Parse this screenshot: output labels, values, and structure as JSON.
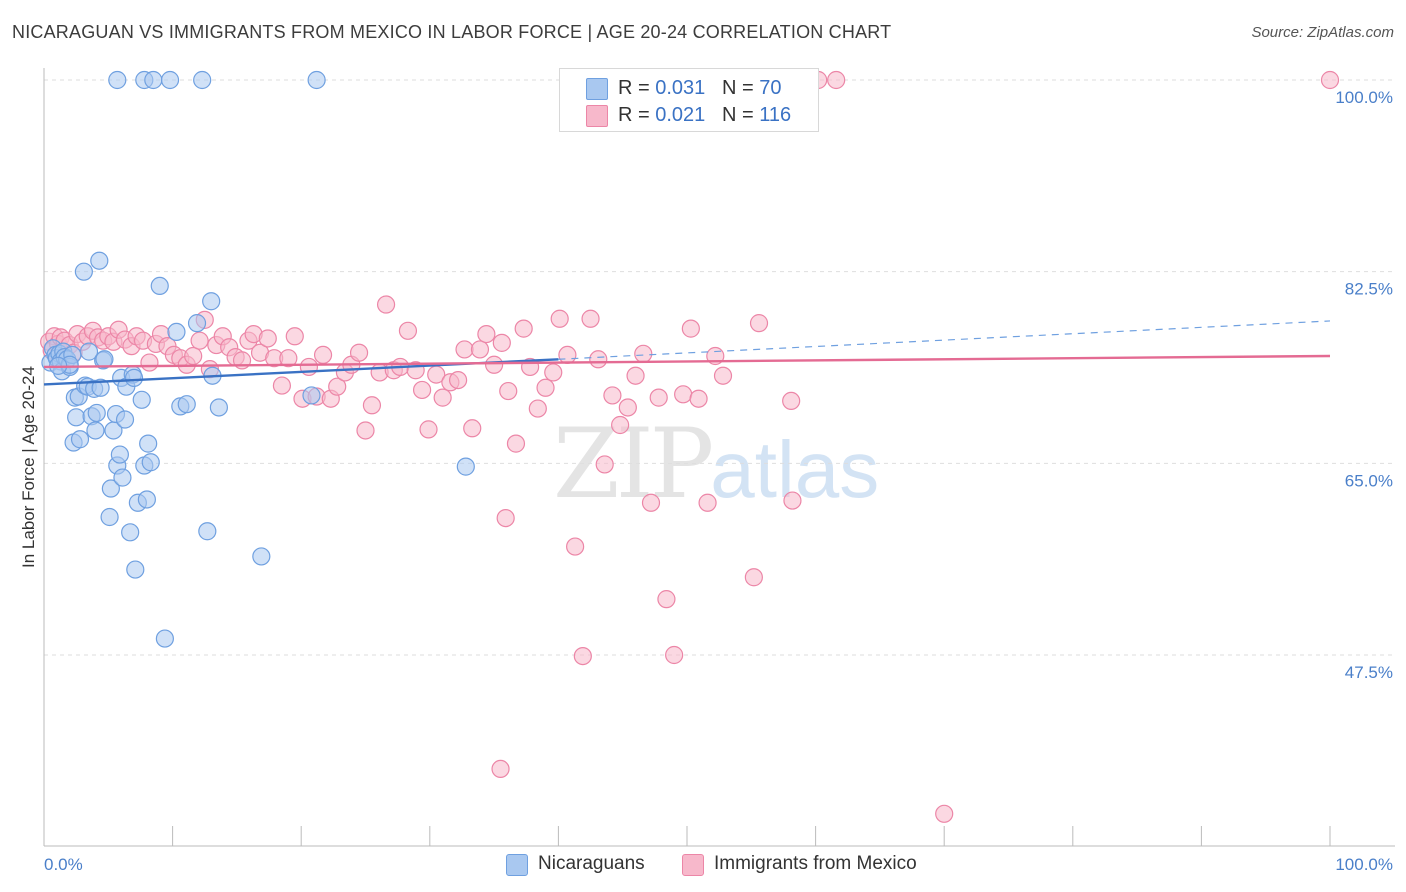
{
  "title": "NICARAGUAN VS IMMIGRANTS FROM MEXICO IN LABOR FORCE | AGE 20-24 CORRELATION CHART",
  "source": "Source: ZipAtlas.com",
  "watermark": {
    "part1": "ZIP",
    "part2": "atlas"
  },
  "legend": {
    "rows": [
      {
        "r_label": "R = ",
        "r_value": "0.031",
        "n_label": "N = ",
        "n_value": "70",
        "color": "#a9c8f0"
      },
      {
        "r_label": "R = ",
        "r_value": "0.021",
        "n_label": "N = ",
        "n_value": "116",
        "color": "#f7b8cb"
      }
    ]
  },
  "bottom_legend": {
    "items": [
      {
        "label": "Nicaraguans",
        "color": "#a9c8f0"
      },
      {
        "label": "Immigrants from Mexico",
        "color": "#f7b8cb"
      }
    ]
  },
  "chart_data": {
    "type": "scatter",
    "xlabel": "",
    "ylabel": "In Labor Force | Age 20-24",
    "xlim": [
      0,
      100
    ],
    "ylim": [
      30,
      100
    ],
    "x_tick_labels": [
      "0.0%",
      "100.0%"
    ],
    "y_ticks": [
      47.5,
      65.0,
      82.5,
      100.0
    ],
    "y_tick_labels": [
      "47.5%",
      "65.0%",
      "82.5%",
      "100.0%"
    ],
    "grid": "horizontal dashed",
    "legend_position": "top-center",
    "series": [
      {
        "name": "Nicaraguans",
        "color": "#6fa0e0",
        "fill": "#a9c8f0",
        "trend": {
          "x": [
            0,
            40
          ],
          "y": [
            72.2,
            74.5
          ],
          "dashed_extension": {
            "x": [
              40,
              100
            ],
            "y": [
              74.5,
              78.0
            ]
          }
        },
        "points": [
          [
            0.5,
            74.2
          ],
          [
            0.7,
            75.5
          ],
          [
            0.9,
            74.9
          ],
          [
            1.0,
            74.6
          ],
          [
            1.2,
            75.0
          ],
          [
            1.3,
            74.3
          ],
          [
            1.4,
            73.4
          ],
          [
            1.5,
            75.2
          ],
          [
            1.6,
            74.7
          ],
          [
            1.8,
            74.5
          ],
          [
            2.0,
            73.8
          ],
          [
            2.2,
            74.9
          ],
          [
            2.4,
            71.0
          ],
          [
            2.3,
            66.9
          ],
          [
            2.5,
            69.2
          ],
          [
            2.7,
            71.1
          ],
          [
            2.8,
            67.2
          ],
          [
            3.1,
            82.5
          ],
          [
            3.2,
            72.1
          ],
          [
            3.4,
            72.0
          ],
          [
            3.5,
            75.2
          ],
          [
            3.7,
            69.3
          ],
          [
            3.9,
            71.8
          ],
          [
            4.0,
            68.0
          ],
          [
            4.1,
            69.6
          ],
          [
            4.3,
            83.5
          ],
          [
            4.4,
            71.9
          ],
          [
            4.6,
            74.4
          ],
          [
            4.7,
            74.5
          ],
          [
            5.1,
            60.1
          ],
          [
            5.2,
            62.7
          ],
          [
            5.4,
            68.0
          ],
          [
            5.6,
            69.5
          ],
          [
            5.7,
            64.8
          ],
          [
            5.9,
            65.8
          ],
          [
            6.0,
            72.8
          ],
          [
            6.1,
            63.7
          ],
          [
            6.3,
            69.0
          ],
          [
            6.4,
            72.0
          ],
          [
            6.7,
            58.7
          ],
          [
            6.9,
            73.1
          ],
          [
            7.0,
            72.8
          ],
          [
            7.1,
            55.3
          ],
          [
            7.3,
            61.4
          ],
          [
            7.6,
            70.8
          ],
          [
            7.8,
            64.8
          ],
          [
            8.0,
            61.7
          ],
          [
            8.1,
            66.8
          ],
          [
            8.3,
            65.1
          ],
          [
            9.0,
            81.2
          ],
          [
            9.4,
            49.0
          ],
          [
            10.3,
            77.0
          ],
          [
            10.6,
            70.2
          ],
          [
            11.1,
            70.4
          ],
          [
            11.9,
            77.8
          ],
          [
            12.7,
            58.8
          ],
          [
            13.0,
            79.8
          ],
          [
            13.1,
            73.0
          ],
          [
            13.6,
            70.1
          ],
          [
            16.9,
            56.5
          ],
          [
            20.8,
            71.2
          ],
          [
            32.8,
            64.7
          ],
          [
            5.7,
            100
          ],
          [
            7.8,
            100
          ],
          [
            8.5,
            100
          ],
          [
            9.8,
            100
          ],
          [
            12.3,
            100
          ],
          [
            21.2,
            100
          ],
          [
            2.0,
            74.0
          ],
          [
            1.1,
            73.9
          ]
        ]
      },
      {
        "name": "Immigrants from Mexico",
        "color": "#ec86a7",
        "fill": "#f7b8cb",
        "trend": {
          "x": [
            0,
            100
          ],
          "y": [
            73.8,
            74.8
          ]
        },
        "points": [
          [
            0.4,
            76.1
          ],
          [
            0.6,
            75.3
          ],
          [
            0.8,
            76.6
          ],
          [
            1.1,
            75.9
          ],
          [
            1.3,
            76.5
          ],
          [
            1.6,
            76.2
          ],
          [
            2.0,
            75.8
          ],
          [
            2.3,
            75.1
          ],
          [
            2.6,
            76.8
          ],
          [
            3.0,
            76.1
          ],
          [
            3.4,
            76.6
          ],
          [
            3.8,
            77.1
          ],
          [
            4.2,
            76.5
          ],
          [
            4.6,
            76.2
          ],
          [
            5.0,
            76.6
          ],
          [
            5.4,
            76.1
          ],
          [
            5.8,
            77.2
          ],
          [
            6.3,
            76.3
          ],
          [
            6.8,
            75.7
          ],
          [
            7.2,
            76.6
          ],
          [
            7.7,
            76.2
          ],
          [
            8.2,
            74.2
          ],
          [
            8.7,
            75.9
          ],
          [
            9.1,
            76.8
          ],
          [
            9.6,
            75.7
          ],
          [
            10.1,
            74.9
          ],
          [
            10.6,
            74.6
          ],
          [
            11.1,
            74.0
          ],
          [
            11.6,
            74.8
          ],
          [
            12.1,
            76.2
          ],
          [
            12.5,
            78.1
          ],
          [
            12.9,
            73.6
          ],
          [
            13.4,
            75.8
          ],
          [
            13.9,
            76.6
          ],
          [
            14.4,
            75.6
          ],
          [
            14.9,
            74.7
          ],
          [
            15.4,
            74.4
          ],
          [
            15.9,
            76.2
          ],
          [
            16.3,
            76.8
          ],
          [
            16.8,
            75.1
          ],
          [
            17.4,
            76.4
          ],
          [
            17.9,
            74.6
          ],
          [
            18.5,
            72.1
          ],
          [
            19.0,
            74.6
          ],
          [
            19.5,
            76.6
          ],
          [
            20.1,
            70.9
          ],
          [
            20.6,
            73.8
          ],
          [
            21.2,
            71.1
          ],
          [
            21.7,
            74.9
          ],
          [
            22.3,
            70.9
          ],
          [
            22.8,
            72.0
          ],
          [
            23.4,
            73.3
          ],
          [
            23.9,
            74.0
          ],
          [
            24.5,
            75.1
          ],
          [
            25.0,
            68.0
          ],
          [
            25.5,
            70.3
          ],
          [
            26.1,
            73.3
          ],
          [
            26.6,
            79.5
          ],
          [
            27.2,
            73.5
          ],
          [
            27.7,
            73.8
          ],
          [
            28.3,
            77.1
          ],
          [
            28.9,
            73.5
          ],
          [
            29.4,
            71.7
          ],
          [
            29.9,
            68.1
          ],
          [
            30.5,
            73.1
          ],
          [
            31.0,
            71.0
          ],
          [
            31.6,
            72.4
          ],
          [
            32.2,
            72.6
          ],
          [
            32.7,
            75.4
          ],
          [
            33.3,
            68.2
          ],
          [
            33.9,
            75.4
          ],
          [
            34.4,
            76.8
          ],
          [
            35.0,
            74.0
          ],
          [
            35.6,
            76.0
          ],
          [
            36.1,
            71.6
          ],
          [
            36.7,
            66.8
          ],
          [
            37.3,
            77.3
          ],
          [
            37.8,
            73.8
          ],
          [
            38.4,
            70.0
          ],
          [
            39.0,
            71.9
          ],
          [
            39.6,
            73.3
          ],
          [
            40.1,
            78.2
          ],
          [
            40.7,
            74.9
          ],
          [
            41.3,
            57.4
          ],
          [
            41.9,
            47.4
          ],
          [
            42.5,
            78.2
          ],
          [
            43.1,
            74.5
          ],
          [
            43.6,
            64.9
          ],
          [
            44.2,
            71.2
          ],
          [
            44.8,
            68.5
          ],
          [
            45.4,
            70.1
          ],
          [
            46.0,
            73.0
          ],
          [
            46.6,
            75.0
          ],
          [
            47.2,
            61.4
          ],
          [
            47.8,
            71.0
          ],
          [
            48.4,
            52.6
          ],
          [
            49.0,
            47.5
          ],
          [
            49.7,
            71.3
          ],
          [
            50.3,
            77.3
          ],
          [
            50.9,
            70.9
          ],
          [
            51.6,
            61.4
          ],
          [
            52.2,
            74.8
          ],
          [
            52.8,
            73.0
          ],
          [
            55.2,
            54.6
          ],
          [
            55.6,
            77.8
          ],
          [
            58.1,
            70.7
          ],
          [
            58.2,
            61.6
          ],
          [
            35.5,
            37.1
          ],
          [
            35.9,
            60.0
          ],
          [
            70.0,
            33.0
          ],
          [
            47.3,
            100
          ],
          [
            50.1,
            100
          ],
          [
            56.4,
            100
          ],
          [
            60.2,
            100
          ],
          [
            61.6,
            100
          ],
          [
            100,
            100
          ]
        ]
      }
    ]
  }
}
